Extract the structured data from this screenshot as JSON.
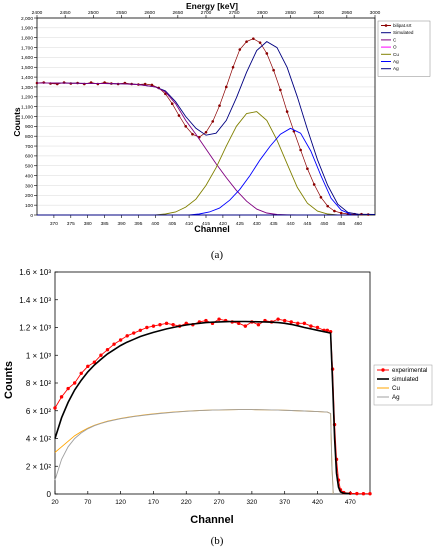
{
  "panel_labels": [
    "(a)",
    "(b)"
  ],
  "chart_data": [
    {
      "type": "line",
      "title": "",
      "xlabel": "Channel",
      "ylabel": "Counts",
      "x2label": "Energy [keV]",
      "xlim": [
        365,
        465
      ],
      "ylim": [
        0,
        2000
      ],
      "x_ticks": [
        370,
        375,
        380,
        385,
        390,
        395,
        400,
        405,
        410,
        415,
        420,
        425,
        430,
        435,
        440,
        445,
        450,
        455,
        460
      ],
      "y_ticks": [
        0,
        100,
        200,
        300,
        400,
        500,
        600,
        700,
        800,
        900,
        1000,
        1100,
        1200,
        1300,
        1400,
        1500,
        1600,
        1700,
        1800,
        1900,
        2000
      ],
      "x2_ticks": [
        2400,
        2450,
        2500,
        2550,
        2600,
        2650,
        2700,
        2750,
        2800,
        2850,
        2900,
        2950,
        3000
      ],
      "x2_map": {
        "channel": [
          365,
          465
        ],
        "energy": [
          2400,
          3000
        ]
      },
      "grid": true,
      "legend_position": "top-right",
      "series": [
        {
          "name": "bilipat.srt",
          "color": "#8b0000",
          "style": "dots",
          "x": [
            365,
            367,
            369,
            371,
            373,
            375,
            377,
            379,
            381,
            383,
            385,
            387,
            389,
            391,
            393,
            395,
            397,
            399,
            401,
            403,
            405,
            407,
            409,
            411,
            413,
            415,
            417,
            419,
            421,
            423,
            425,
            427,
            429,
            431,
            433,
            435,
            437,
            439,
            441,
            443,
            445,
            447,
            449,
            451,
            453,
            455,
            457,
            459,
            461,
            463
          ],
          "values": [
            1340,
            1345,
            1335,
            1330,
            1345,
            1335,
            1340,
            1330,
            1345,
            1330,
            1345,
            1335,
            1330,
            1340,
            1330,
            1325,
            1330,
            1320,
            1290,
            1230,
            1130,
            1010,
            900,
            820,
            790,
            840,
            950,
            1110,
            1300,
            1500,
            1680,
            1760,
            1790,
            1750,
            1640,
            1470,
            1270,
            1050,
            850,
            660,
            470,
            310,
            180,
            90,
            40,
            20,
            10,
            8,
            8,
            5
          ]
        },
        {
          "name": "Simulated",
          "color": "#000080",
          "x": [
            365,
            370,
            375,
            380,
            385,
            390,
            395,
            400,
            403,
            406,
            409,
            412,
            415,
            418,
            421,
            424,
            427,
            430,
            433,
            436,
            439,
            442,
            445,
            448,
            451,
            454,
            457,
            460,
            465
          ],
          "values": [
            1340,
            1340,
            1338,
            1336,
            1335,
            1332,
            1325,
            1300,
            1260,
            1150,
            1000,
            880,
            810,
            830,
            960,
            1190,
            1450,
            1670,
            1760,
            1700,
            1500,
            1200,
            870,
            560,
            300,
            110,
            25,
            8,
            5
          ]
        },
        {
          "name": "C",
          "color": "#800080",
          "x": [
            365,
            370,
            375,
            380,
            385,
            390,
            395,
            400,
            403,
            406,
            409,
            412,
            415,
            418,
            421,
            424,
            427,
            430,
            433,
            436,
            439,
            442,
            445
          ],
          "values": [
            1340,
            1340,
            1338,
            1336,
            1335,
            1332,
            1325,
            1300,
            1250,
            1130,
            960,
            820,
            670,
            520,
            380,
            250,
            140,
            60,
            20,
            5,
            2,
            1,
            0
          ]
        },
        {
          "name": "O",
          "color": "#ff00ff",
          "x": [
            365,
            460
          ],
          "values": [
            0,
            0
          ]
        },
        {
          "name": "Cu",
          "color": "#808000",
          "x": [
            400,
            403,
            406,
            409,
            412,
            415,
            418,
            421,
            424,
            427,
            430,
            433,
            436,
            439,
            442,
            445,
            448,
            451,
            454
          ],
          "values": [
            0,
            10,
            30,
            80,
            160,
            300,
            480,
            700,
            900,
            1030,
            1050,
            960,
            760,
            520,
            280,
            120,
            40,
            10,
            0
          ]
        },
        {
          "name": "Ag",
          "color": "#0000ff",
          "x": [
            410,
            413,
            416,
            419,
            422,
            425,
            428,
            431,
            434,
            437,
            440,
            443,
            446,
            449,
            452,
            455,
            458
          ],
          "values": [
            0,
            10,
            30,
            70,
            150,
            260,
            400,
            560,
            700,
            820,
            880,
            830,
            650,
            400,
            170,
            50,
            5
          ]
        },
        {
          "name": "Ag",
          "color": "#000080",
          "x": [
            365,
            460
          ],
          "values": [
            0,
            0
          ]
        }
      ]
    },
    {
      "type": "line",
      "title": "",
      "xlabel": "Channel",
      "ylabel": "Counts",
      "xlim": [
        20,
        500
      ],
      "ylim": [
        0,
        1600
      ],
      "x_ticks": [
        20,
        70,
        120,
        170,
        220,
        270,
        320,
        370,
        420,
        470
      ],
      "y_ticks": [
        0,
        200,
        400,
        600,
        800,
        1000,
        1200,
        1400,
        1600
      ],
      "y_tick_labels": [
        "0",
        "2 × 10²",
        "4 × 10²",
        "6 × 10²",
        "8 × 10²",
        "1 × 10³",
        "1.2 × 10³",
        "1.4 × 10³",
        "1.6 × 10³"
      ],
      "grid": false,
      "legend_position": "right",
      "series": [
        {
          "name": "experimental",
          "color": "#ff0000",
          "style": "dots",
          "x": [
            20,
            30,
            40,
            50,
            60,
            70,
            80,
            90,
            100,
            110,
            120,
            130,
            140,
            150,
            160,
            170,
            180,
            190,
            200,
            210,
            220,
            230,
            240,
            250,
            260,
            270,
            280,
            290,
            300,
            310,
            320,
            330,
            340,
            350,
            360,
            370,
            380,
            390,
            400,
            410,
            420,
            430,
            435,
            440,
            443,
            446,
            449,
            452,
            455,
            460,
            470,
            480,
            490,
            500
          ],
          "values": [
            620,
            700,
            760,
            800,
            870,
            920,
            950,
            1000,
            1040,
            1080,
            1110,
            1140,
            1160,
            1180,
            1200,
            1210,
            1220,
            1230,
            1220,
            1210,
            1230,
            1220,
            1240,
            1250,
            1230,
            1260,
            1250,
            1240,
            1230,
            1210,
            1240,
            1220,
            1250,
            1240,
            1260,
            1250,
            1240,
            1230,
            1230,
            1210,
            1200,
            1180,
            1180,
            1170,
            900,
            500,
            250,
            100,
            30,
            10,
            5,
            3,
            2,
            2
          ]
        },
        {
          "name": "simulated",
          "color": "#000000",
          "x": [
            20,
            30,
            40,
            50,
            60,
            70,
            80,
            90,
            100,
            110,
            120,
            130,
            140,
            150,
            160,
            170,
            180,
            190,
            200,
            210,
            220,
            230,
            240,
            250,
            260,
            270,
            280,
            290,
            300,
            310,
            320,
            330,
            340,
            350,
            360,
            370,
            380,
            390,
            400,
            410,
            420,
            430,
            435,
            440,
            443,
            446,
            449,
            452,
            455,
            460,
            470
          ],
          "values": [
            400,
            550,
            660,
            750,
            820,
            880,
            930,
            970,
            1010,
            1040,
            1070,
            1095,
            1115,
            1135,
            1150,
            1165,
            1178,
            1190,
            1200,
            1210,
            1218,
            1225,
            1230,
            1235,
            1238,
            1240,
            1242,
            1243,
            1243,
            1243,
            1242,
            1241,
            1240,
            1238,
            1235,
            1230,
            1222,
            1212,
            1200,
            1190,
            1180,
            1170,
            1165,
            1160,
            800,
            400,
            150,
            50,
            15,
            5,
            2
          ]
        },
        {
          "name": "Cu",
          "color": "#ffa500",
          "x": [
            20,
            30,
            40,
            50,
            60,
            70,
            80,
            90,
            100,
            120,
            140,
            160,
            180,
            200,
            220,
            240,
            260,
            280,
            300,
            320,
            340,
            360,
            380,
            400,
            420,
            435,
            440,
            442,
            444
          ],
          "values": [
            300,
            340,
            380,
            420,
            450,
            475,
            495,
            510,
            525,
            545,
            560,
            572,
            582,
            590,
            597,
            602,
            605,
            607,
            608,
            608,
            607,
            605,
            602,
            598,
            594,
            590,
            580,
            200,
            0
          ]
        },
        {
          "name": "Ag",
          "color": "#a0a0a0",
          "x": [
            20,
            30,
            40,
            50,
            60,
            70,
            80,
            90,
            100,
            120,
            140,
            160,
            180,
            200,
            220,
            240,
            260,
            280,
            300,
            320,
            340,
            360,
            380,
            400,
            420,
            435,
            440,
            442,
            444
          ],
          "values": [
            100,
            250,
            340,
            400,
            440,
            470,
            492,
            508,
            522,
            543,
            558,
            570,
            580,
            589,
            596,
            601,
            605,
            607,
            608,
            608,
            607,
            605,
            602,
            598,
            594,
            590,
            580,
            200,
            0
          ]
        }
      ]
    }
  ]
}
